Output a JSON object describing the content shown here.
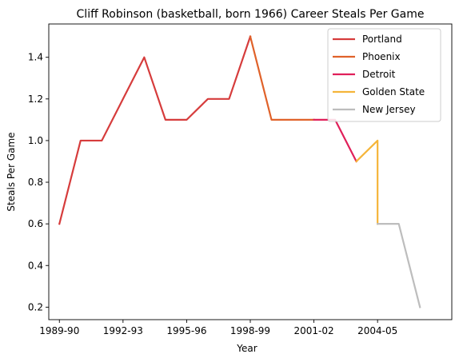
{
  "chart_data": {
    "type": "line",
    "title": "Cliff Robinson (basketball, born 1966) Career Steals Per Game",
    "xlabel": "Year",
    "ylabel": "Steals Per Game",
    "x_tick_labels": [
      "1989-90",
      "1992-93",
      "1995-96",
      "1998-99",
      "2001-02",
      "2004-05"
    ],
    "xlim": [
      1988.5,
      2007.5
    ],
    "ylim": [
      0.14,
      1.56
    ],
    "y_ticks": [
      0.2,
      0.4,
      0.6,
      0.8,
      1.0,
      1.2,
      1.4
    ],
    "y_tick_labels": [
      "0.2",
      "0.4",
      "0.6",
      "0.8",
      "1.0",
      "1.2",
      "1.4"
    ],
    "grid": false,
    "legend_position": "top-right",
    "series": [
      {
        "name": "Portland",
        "color": "#d63c3c",
        "x": [
          1989,
          1990,
          1991,
          1992,
          1993,
          1994,
          1995,
          1996,
          1997,
          1998
        ],
        "y": [
          0.6,
          1.0,
          1.0,
          1.2,
          1.4,
          1.1,
          1.1,
          1.2,
          1.2,
          1.5
        ]
      },
      {
        "name": "Phoenix",
        "color": "#e0622a",
        "x": [
          1998,
          1999,
          2000,
          2001
        ],
        "y": [
          1.5,
          1.1,
          1.1,
          1.1
        ]
      },
      {
        "name": "Detroit",
        "color": "#e0205a",
        "x": [
          2001,
          2002,
          2003
        ],
        "y": [
          1.1,
          1.1,
          0.9
        ]
      },
      {
        "name": "Golden State",
        "color": "#f5b53a",
        "x": [
          2003,
          2004,
          2004
        ],
        "y": [
          0.9,
          1.0,
          0.6
        ]
      },
      {
        "name": "New Jersey",
        "color": "#bdbdbd",
        "x": [
          2004,
          2005,
          2006
        ],
        "y": [
          0.6,
          0.6,
          0.2
        ]
      }
    ]
  }
}
